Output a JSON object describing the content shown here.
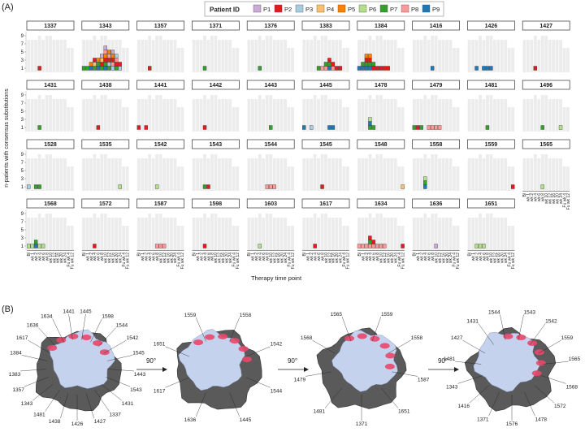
{
  "panel_labels": [
    "(A)",
    "(B)"
  ],
  "chart_data": {
    "type": "tile-facets",
    "legend_title": "Patient ID",
    "patients": [
      {
        "name": "P1",
        "color": "#cbaad8"
      },
      {
        "name": "P2",
        "color": "#e31a1c"
      },
      {
        "name": "P3",
        "color": "#a6cee3"
      },
      {
        "name": "P4",
        "color": "#fdbf6f"
      },
      {
        "name": "P5",
        "color": "#ff7f00"
      },
      {
        "name": "P6",
        "color": "#b2df8a"
      },
      {
        "name": "P7",
        "color": "#33a02c"
      },
      {
        "name": "P8",
        "color": "#fb9a99"
      },
      {
        "name": "P9",
        "color": "#1f78b4"
      }
    ],
    "timepoints": [
      "Bl",
      "wk 1",
      "wk 2",
      "wk 4",
      "wk 6",
      "wk 8",
      "wk 10",
      "wk 12",
      "wk 16",
      "wk 20",
      "wk 24",
      "Fu wk 4",
      "Fu wk 12"
    ],
    "sampled": [
      8,
      8,
      8,
      9,
      8,
      9,
      9,
      8,
      8,
      8,
      8,
      6,
      6
    ],
    "ylabel": "n-patients with consensus substitutions",
    "xlabel": "Therapy time point",
    "ylim": [
      0,
      10
    ],
    "yticks": [
      1,
      3,
      5,
      7,
      9
    ],
    "facets": [
      {
        "label": "1337",
        "cells": [
          [
            "wk 4",
            "P2"
          ]
        ]
      },
      {
        "label": "1343",
        "cells": [
          [
            "Bl",
            "P7"
          ],
          [
            "wk 1",
            "P7"
          ],
          [
            "wk 2",
            "P9"
          ],
          [
            "wk 2",
            "P5"
          ],
          [
            "wk 4",
            "P7"
          ],
          [
            "wk 4",
            "P4"
          ],
          [
            "wk 4",
            "P2"
          ],
          [
            "wk 6",
            "P9"
          ],
          [
            "wk 6",
            "P7"
          ],
          [
            "wk 6",
            "P5"
          ],
          [
            "wk 8",
            "P7"
          ],
          [
            "wk 8",
            "P2"
          ],
          [
            "wk 8",
            "P4"
          ],
          [
            "wk 8",
            "P1"
          ],
          [
            "wk 10",
            "P9"
          ],
          [
            "wk 10",
            "P7"
          ],
          [
            "wk 10",
            "P2"
          ],
          [
            "wk 10",
            "P5"
          ],
          [
            "wk 10",
            "P8"
          ],
          [
            "wk 10",
            "P1"
          ],
          [
            "wk 12",
            "P7"
          ],
          [
            "wk 12",
            "P3"
          ],
          [
            "wk 12",
            "P2"
          ],
          [
            "wk 12",
            "P8"
          ],
          [
            "wk 12",
            "P5"
          ],
          [
            "wk 16",
            "P3"
          ],
          [
            "wk 16",
            "P8"
          ],
          [
            "wk 16",
            "P2"
          ],
          [
            "wk 16",
            "P5"
          ],
          [
            "wk 16",
            "P1"
          ],
          [
            "wk 20",
            "P7"
          ],
          [
            "wk 20",
            "P2"
          ],
          [
            "wk 20",
            "P8"
          ],
          [
            "wk 20",
            "P3"
          ],
          [
            "wk 24",
            "P3"
          ],
          [
            "wk 24",
            "P2"
          ]
        ]
      },
      {
        "label": "1357",
        "cells": [
          [
            "wk 4",
            "P2"
          ]
        ]
      },
      {
        "label": "1371",
        "cells": [
          [
            "wk 4",
            "P7"
          ]
        ]
      },
      {
        "label": "1376",
        "cells": [
          [
            "wk 4",
            "P7"
          ]
        ]
      },
      {
        "label": "1383",
        "cells": [
          [
            "wk 6",
            "P7"
          ],
          [
            "wk 8",
            "P8"
          ],
          [
            "wk 10",
            "P8"
          ],
          [
            "wk 10",
            "P7"
          ],
          [
            "wk 12",
            "P9"
          ],
          [
            "wk 12",
            "P7"
          ],
          [
            "wk 12",
            "P2"
          ],
          [
            "wk 16",
            "P8"
          ],
          [
            "wk 16",
            "P2"
          ],
          [
            "wk 20",
            "P2"
          ],
          [
            "wk 24",
            "P2"
          ]
        ]
      },
      {
        "label": "1384",
        "cells": [
          [
            "Bl",
            "P9"
          ],
          [
            "wk 1",
            "P9"
          ],
          [
            "wk 1",
            "P7"
          ],
          [
            "wk 2",
            "P9"
          ],
          [
            "wk 2",
            "P7"
          ],
          [
            "wk 2",
            "P2"
          ],
          [
            "wk 2",
            "P5"
          ],
          [
            "wk 4",
            "P9"
          ],
          [
            "wk 4",
            "P7"
          ],
          [
            "wk 4",
            "P2"
          ],
          [
            "wk 4",
            "P5"
          ],
          [
            "wk 6",
            "P2"
          ],
          [
            "wk 6",
            "P7"
          ],
          [
            "wk 8",
            "P2"
          ],
          [
            "wk 10",
            "P2"
          ],
          [
            "wk 12",
            "P2"
          ],
          [
            "wk 16",
            "P2"
          ]
        ]
      },
      {
        "label": "1416",
        "cells": [
          [
            "wk 8",
            "P9"
          ]
        ]
      },
      {
        "label": "1426",
        "cells": [
          [
            "wk 2",
            "P9"
          ],
          [
            "wk 6",
            "P9"
          ],
          [
            "wk 8",
            "P9"
          ],
          [
            "wk 10",
            "P9"
          ]
        ]
      },
      {
        "label": "1427",
        "cells": [
          [
            "wk 4",
            "P2"
          ]
        ]
      },
      {
        "label": "1431",
        "cells": [
          [
            "wk 4",
            "P7"
          ]
        ]
      },
      {
        "label": "1438",
        "cells": [
          [
            "wk 6",
            "P2"
          ]
        ]
      },
      {
        "label": "1441",
        "cells": [
          [
            "Bl",
            "P2"
          ],
          [
            "wk 2",
            "P2"
          ]
        ]
      },
      {
        "label": "1442",
        "cells": [
          [
            "wk 4",
            "P2"
          ]
        ]
      },
      {
        "label": "1443",
        "cells": [
          [
            "wk 10",
            "P7"
          ]
        ]
      },
      {
        "label": "1445",
        "cells": [
          [
            "Bl",
            "P9"
          ],
          [
            "wk 2",
            "P3"
          ],
          [
            "wk 12",
            "P9"
          ],
          [
            "wk 16",
            "P9"
          ]
        ]
      },
      {
        "label": "1478",
        "cells": [
          [
            "wk 4",
            "P7"
          ],
          [
            "wk 4",
            "P9"
          ],
          [
            "wk 4",
            "P6"
          ],
          [
            "wk 6",
            "P7"
          ]
        ]
      },
      {
        "label": "1479",
        "cells": [
          [
            "Bl",
            "P7"
          ],
          [
            "wk 1",
            "P2"
          ],
          [
            "wk 2",
            "P7"
          ],
          [
            "wk 6",
            "P8"
          ],
          [
            "wk 8",
            "P8"
          ],
          [
            "wk 10",
            "P8"
          ],
          [
            "wk 12",
            "P8"
          ]
        ]
      },
      {
        "label": "1481",
        "cells": [
          [
            "wk 8",
            "P7"
          ]
        ]
      },
      {
        "label": "1496",
        "cells": [
          [
            "wk 8",
            "P7"
          ],
          [
            "wk 24",
            "P6"
          ]
        ]
      },
      {
        "label": "1528",
        "cells": [
          [
            "Bl",
            "P3"
          ],
          [
            "wk 2",
            "P7"
          ],
          [
            "wk 4",
            "P7"
          ]
        ]
      },
      {
        "label": "1535",
        "cells": [
          [
            "wk 24",
            "P6"
          ]
        ]
      },
      {
        "label": "1542",
        "cells": [
          [
            "wk 8",
            "P6"
          ]
        ]
      },
      {
        "label": "1543",
        "cells": [
          [
            "wk 4",
            "P7"
          ],
          [
            "wk 6",
            "P2"
          ]
        ]
      },
      {
        "label": "1544",
        "cells": [
          [
            "wk 8",
            "P8"
          ],
          [
            "wk 10",
            "P8"
          ],
          [
            "wk 12",
            "P8"
          ]
        ]
      },
      {
        "label": "1545",
        "cells": [
          [
            "wk 8",
            "P2"
          ]
        ]
      },
      {
        "label": "1548",
        "cells": [
          [
            "Fu wk 12",
            "P4"
          ]
        ]
      },
      {
        "label": "1558",
        "cells": [
          [
            "wk 4",
            "P9"
          ],
          [
            "wk 4",
            "P7"
          ],
          [
            "wk 4",
            "P6"
          ]
        ]
      },
      {
        "label": "1559",
        "cells": [
          [
            "Fu wk 12",
            "P2"
          ]
        ]
      },
      {
        "label": "1565",
        "cells": [
          [
            "wk 8",
            "P6"
          ]
        ]
      },
      {
        "label": "1568",
        "cells": [
          [
            "Bl",
            "P6"
          ],
          [
            "wk 1",
            "P6"
          ],
          [
            "wk 2",
            "P9"
          ],
          [
            "wk 2",
            "P7"
          ],
          [
            "wk 4",
            "P6"
          ],
          [
            "wk 6",
            "P6"
          ]
        ]
      },
      {
        "label": "1572",
        "cells": [
          [
            "wk 4",
            "P2"
          ]
        ]
      },
      {
        "label": "1587",
        "cells": [
          [
            "wk 8",
            "P8"
          ],
          [
            "wk 10",
            "P8"
          ],
          [
            "wk 12",
            "P8"
          ]
        ]
      },
      {
        "label": "1598",
        "cells": [
          [
            "wk 4",
            "P2"
          ]
        ]
      },
      {
        "label": "1603",
        "cells": [
          [
            "wk 4",
            "P6"
          ]
        ]
      },
      {
        "label": "1617",
        "cells": [
          [
            "wk 4",
            "P2"
          ]
        ]
      },
      {
        "label": "1634",
        "cells": [
          [
            "Bl",
            "P8"
          ],
          [
            "wk 1",
            "P8"
          ],
          [
            "wk 2",
            "P8"
          ],
          [
            "wk 4",
            "P8"
          ],
          [
            "wk 4",
            "P7"
          ],
          [
            "wk 4",
            "P2"
          ],
          [
            "wk 6",
            "P8"
          ],
          [
            "wk 6",
            "P2"
          ],
          [
            "wk 8",
            "P8"
          ],
          [
            "wk 10",
            "P8"
          ],
          [
            "wk 12",
            "P8"
          ],
          [
            "Fu wk 12",
            "P2"
          ]
        ]
      },
      {
        "label": "1636",
        "cells": [
          [
            "wk 10",
            "P1"
          ]
        ]
      },
      {
        "label": "1651",
        "cells": [
          [
            "wk 2",
            "P6"
          ],
          [
            "wk 4",
            "P6"
          ],
          [
            "wk 6",
            "P6"
          ]
        ]
      }
    ]
  },
  "structure_panel": {
    "rotation": "90°",
    "views": [
      [
        "1445",
        "1598",
        "1544",
        "1542",
        "1545",
        "1443",
        "1543",
        "1431",
        "1337",
        "1427",
        "1426",
        "1438",
        "1481",
        "1343",
        "1357",
        "1383",
        "1384",
        "1617",
        "1636",
        "1634",
        "1441"
      ],
      [
        "1558",
        "1542",
        "1544",
        "1445",
        "1636",
        "1617",
        "1651",
        "1559"
      ],
      [
        "1559",
        "1558",
        "1587",
        "1651",
        "1371",
        "1481",
        "1479",
        "1568",
        "1565"
      ],
      [
        "1543",
        "1542",
        "1559",
        "1565",
        "1568",
        "1572",
        "1478",
        "1576",
        "1371",
        "1416",
        "1343",
        "1481",
        "1427",
        "1431",
        "1544"
      ]
    ]
  }
}
